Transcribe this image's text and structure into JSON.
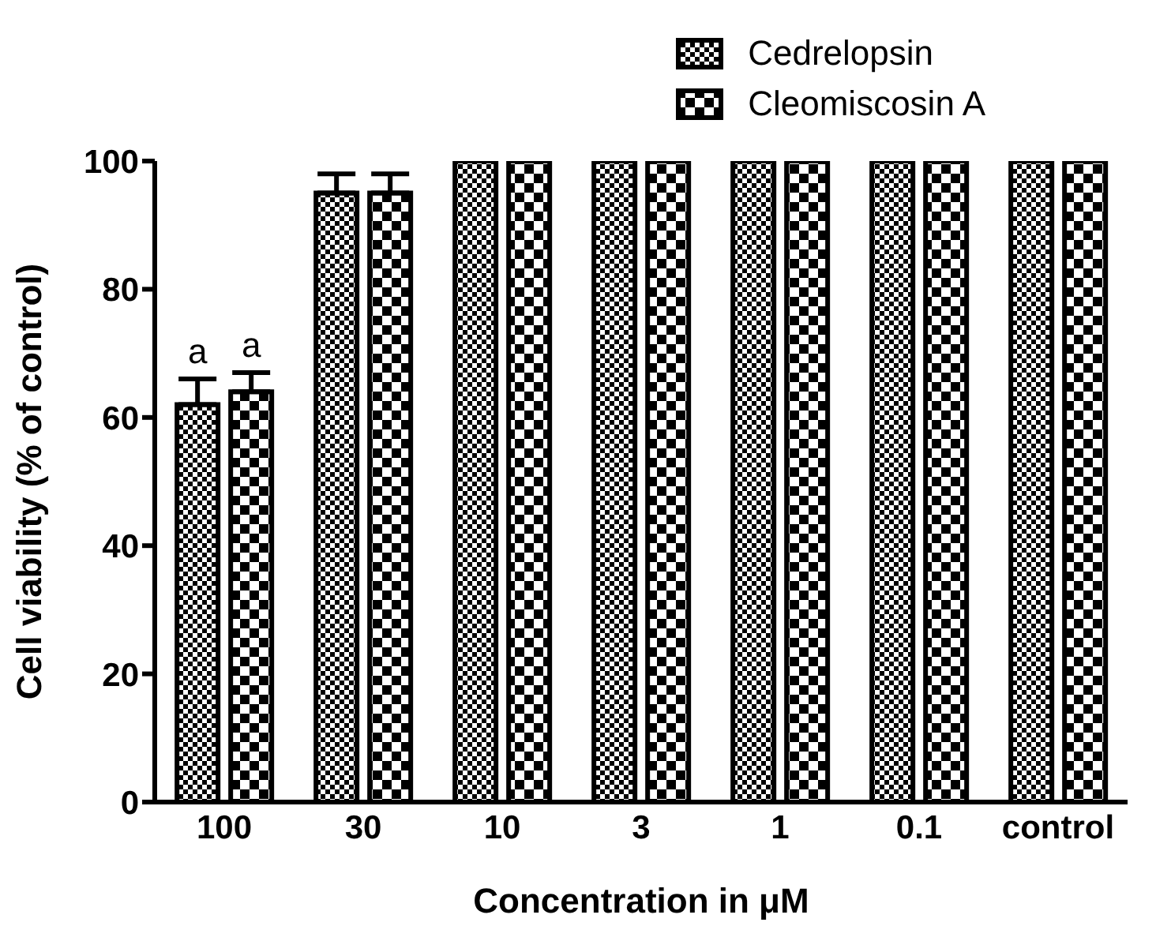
{
  "chart_data": {
    "type": "bar",
    "xlabel": "Concentration in μM",
    "ylabel": "Cell viability (% of control)",
    "categories": [
      "100",
      "30",
      "10",
      "3",
      "1",
      "0.1",
      "control"
    ],
    "series": [
      {
        "name": "Cedrelopsin",
        "color": "#000000",
        "values": [
          62,
          95,
          100,
          100,
          100,
          100,
          100
        ],
        "errors": [
          4,
          3,
          null,
          null,
          null,
          null,
          null
        ],
        "value_labels": [
          "a",
          null,
          null,
          null,
          null,
          null,
          null
        ]
      },
      {
        "name": "Cleomiscosin A",
        "color": "#000000",
        "values": [
          64,
          95,
          100,
          100,
          100,
          100,
          100
        ],
        "errors": [
          3,
          3,
          null,
          null,
          null,
          null,
          null
        ],
        "value_labels": [
          "a",
          null,
          null,
          null,
          null,
          null,
          null
        ]
      }
    ],
    "ylim": [
      0,
      100
    ],
    "yticks": [
      0,
      20,
      40,
      60,
      80,
      100
    ],
    "grid": false,
    "legend": "top right"
  }
}
